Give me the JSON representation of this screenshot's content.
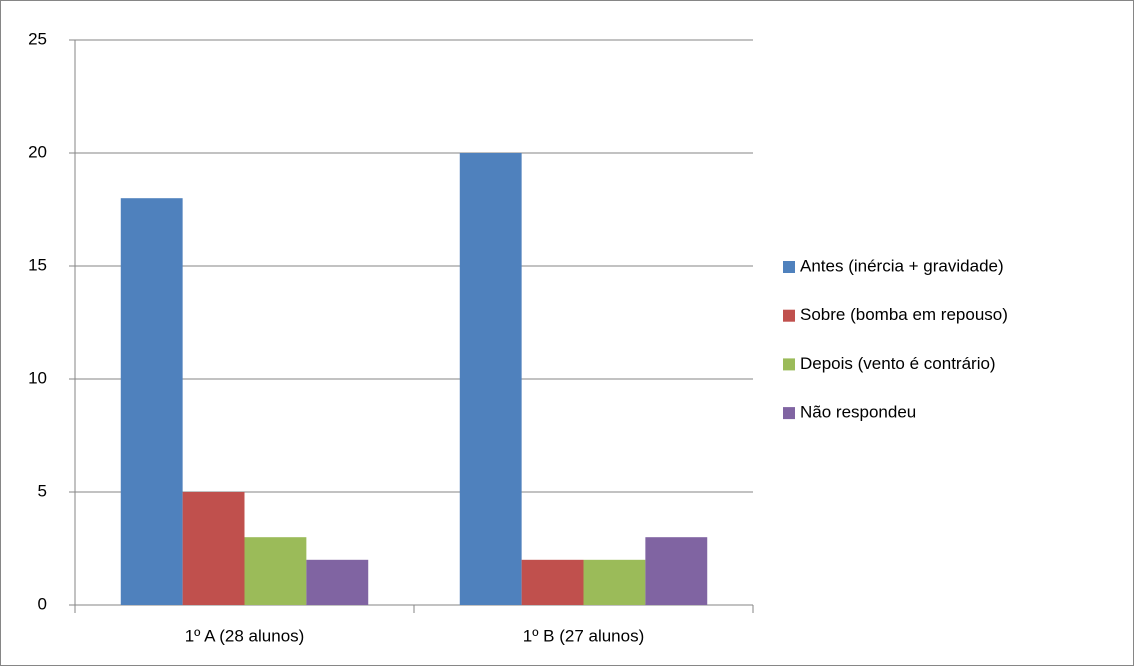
{
  "chart_data": {
    "type": "bar",
    "categories": [
      "1º A (28 alunos)",
      "1º B (27 alunos)"
    ],
    "series": [
      {
        "name": "Antes (inércia + gravidade)",
        "color": "#4f81bd",
        "values": [
          18,
          20
        ]
      },
      {
        "name": "Sobre (bomba em repouso)",
        "color": "#c0504d",
        "values": [
          5,
          2
        ]
      },
      {
        "name": "Depois (vento é contrário)",
        "color": "#9bbb59",
        "values": [
          3,
          2
        ]
      },
      {
        "name": "Não respondeu",
        "color": "#8064a2",
        "values": [
          2,
          3
        ]
      }
    ],
    "ylim": [
      0,
      25
    ],
    "yticks": [
      0,
      5,
      10,
      15,
      20,
      25
    ],
    "grid": true,
    "legend": "right"
  }
}
